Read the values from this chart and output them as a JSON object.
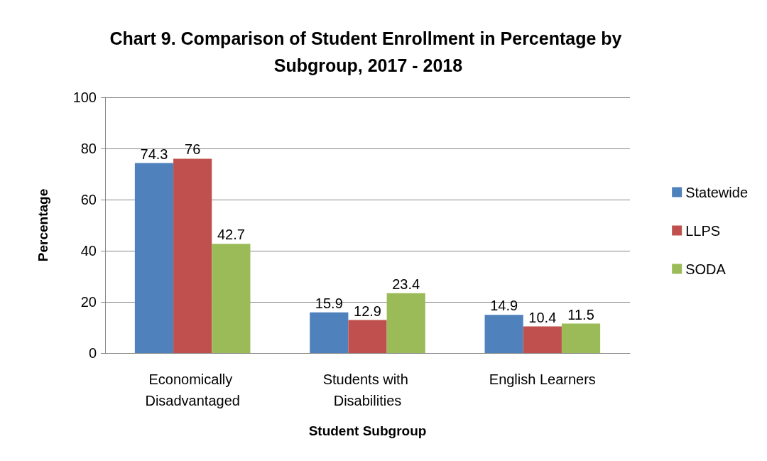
{
  "chart_data": {
    "type": "bar",
    "title": "Chart 9. Comparison of Student Enrollment in Percentage by Subgroup, 2017 - 2018",
    "xlabel": "Student Subgroup",
    "ylabel": "Percentage",
    "categories": [
      "Economically Disadvantaged",
      "Students with Disabilities",
      "English Learners"
    ],
    "series": [
      {
        "name": "Statewide",
        "color": "#4f81bd",
        "values": [
          74.3,
          15.9,
          14.9
        ]
      },
      {
        "name": "LLPS",
        "color": "#c0504d",
        "values": [
          76,
          12.9,
          10.4
        ]
      },
      {
        "name": "SODA",
        "color": "#9bbb59",
        "values": [
          42.7,
          23.4,
          11.5
        ]
      }
    ],
    "ylim": [
      0,
      100
    ],
    "yticks": [
      0,
      20,
      40,
      60,
      80,
      100
    ],
    "grid": "y",
    "legend": "right",
    "data_labels": true
  }
}
